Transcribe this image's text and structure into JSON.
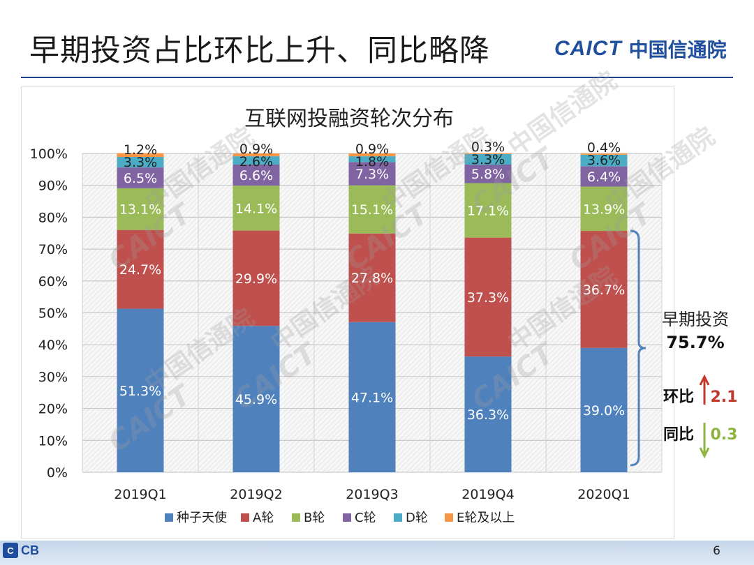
{
  "header": {
    "title": "早期投资占比环比上升、同比略降",
    "logo_text": "CAICT",
    "logo_cn": "中国信通院"
  },
  "watermark": {
    "text_latin": "CAICT",
    "text_cn": "中国信通院"
  },
  "footer": {
    "page_number": "6",
    "logo_text": "CB"
  },
  "annotation": {
    "label": "早期投资",
    "value": "75.7%",
    "qoq_label": "环比",
    "qoq_value": "2.1",
    "yoy_label": "同比",
    "yoy_value": "0.3"
  },
  "colors": {
    "seed": "#4f81bd",
    "a": "#c0504d",
    "b": "#9bbb59",
    "c": "#8064a2",
    "d": "#4bacc6",
    "e": "#f79646",
    "up_arrow": "#c0392b",
    "down_arrow": "#8db43e",
    "bracket": "#4f81bd"
  },
  "chart_data": {
    "type": "bar",
    "stacked": true,
    "title": "互联网投融资轮次分布",
    "categories": [
      "2019Q1",
      "2019Q2",
      "2019Q3",
      "2019Q4",
      "2020Q1"
    ],
    "series": [
      {
        "name": "种子天使",
        "values": [
          51.3,
          45.9,
          47.1,
          36.3,
          39.0
        ],
        "labels": [
          "51.3%",
          "45.9%",
          "47.1%",
          "36.3%",
          "39.0%"
        ]
      },
      {
        "name": "A轮",
        "values": [
          24.7,
          29.9,
          27.8,
          37.3,
          36.7
        ],
        "labels": [
          "24.7%",
          "29.9%",
          "27.8%",
          "37.3%",
          "36.7%"
        ]
      },
      {
        "name": "B轮",
        "values": [
          13.1,
          14.1,
          15.1,
          17.1,
          13.9
        ],
        "labels": [
          "13.1%",
          "14.1%",
          "15.1%",
          "17.1%",
          "13.9%"
        ]
      },
      {
        "name": "C轮",
        "values": [
          6.5,
          6.6,
          7.3,
          5.8,
          6.4
        ],
        "labels": [
          "6.5%",
          "6.6%",
          "7.3%",
          "5.8%",
          "6.4%"
        ]
      },
      {
        "name": "D轮",
        "values": [
          3.3,
          2.6,
          1.8,
          3.3,
          3.6
        ],
        "labels": [
          "3.3%",
          "2.6%",
          "1.8%",
          "3.3%",
          "3.6%"
        ]
      },
      {
        "name": "E轮及以上",
        "values": [
          1.2,
          0.9,
          0.9,
          0.3,
          0.4
        ],
        "labels": [
          "1.2%",
          "0.9%",
          "0.9%",
          "0.3%",
          "0.4%"
        ]
      }
    ],
    "y_ticks": [
      "0%",
      "10%",
      "20%",
      "30%",
      "40%",
      "50%",
      "60%",
      "70%",
      "80%",
      "90%",
      "100%"
    ],
    "ylim": [
      0,
      100
    ],
    "grid": true,
    "legend_position": "bottom"
  }
}
